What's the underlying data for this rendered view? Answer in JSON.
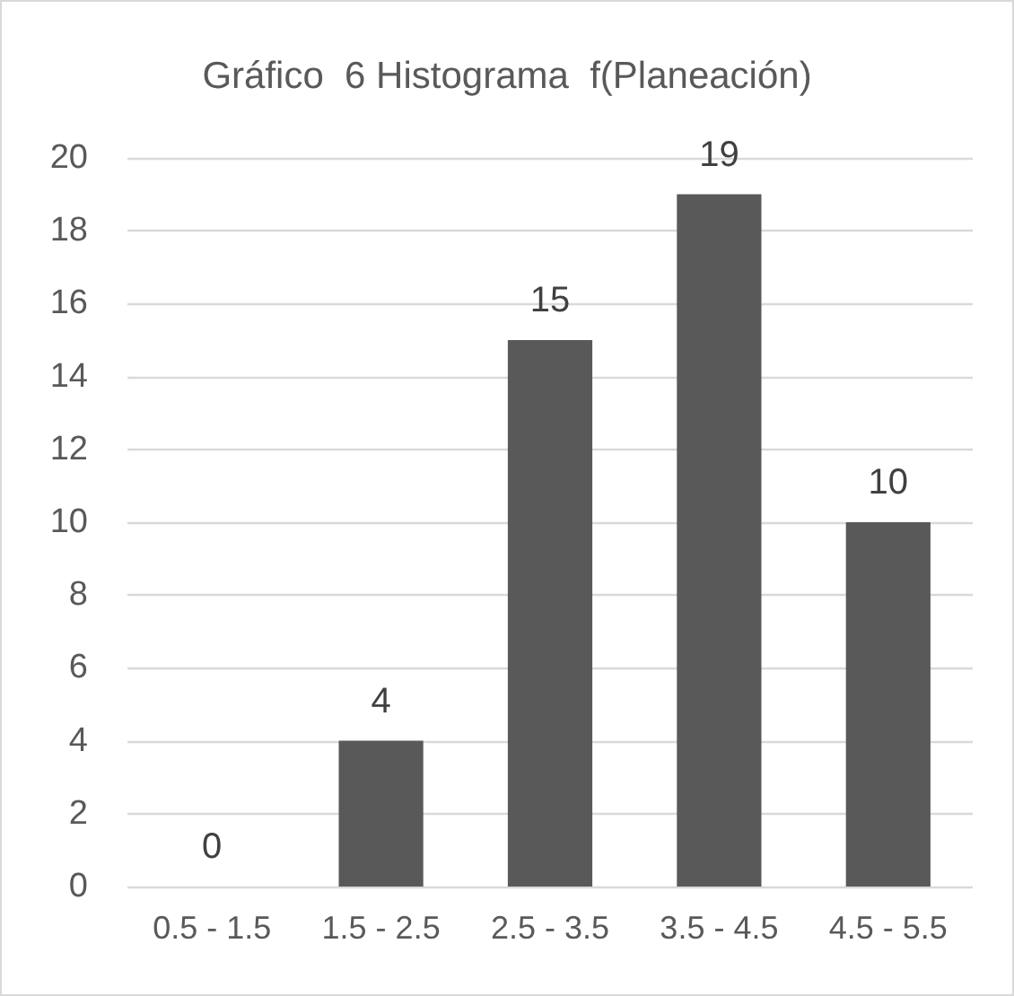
{
  "chart_data": {
    "type": "bar",
    "title": "Gráfico  6 Histograma  f(Planeación)",
    "categories": [
      "0.5 - 1.5",
      "1.5 - 2.5",
      "2.5 - 3.5",
      "3.5 - 4.5",
      "4.5 - 5.5"
    ],
    "values": [
      0,
      4,
      15,
      19,
      10
    ],
    "color": "#595959",
    "ylim": [
      0,
      20
    ],
    "yticks": [
      0,
      2,
      4,
      6,
      8,
      10,
      12,
      14,
      16,
      18,
      20
    ],
    "grid": "y",
    "data_labels": true
  }
}
